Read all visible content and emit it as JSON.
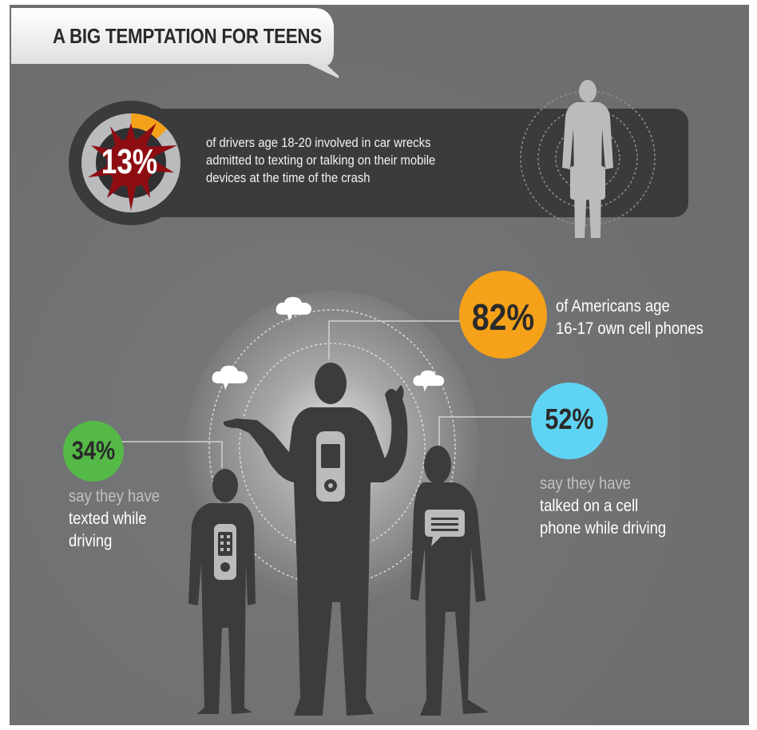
{
  "title": "A BIG TEMPTATION FOR TEENS",
  "stat_crash": {
    "value": "13%",
    "fraction": 0.13,
    "lines": [
      "of drivers age 18-20 involved in car wrecks",
      "admitted to texting or talking on their mobile",
      "devices at the time of the crash"
    ]
  },
  "stat_own": {
    "value": "82%",
    "lines": [
      "of Americans age",
      "16-17 own cell phones"
    ]
  },
  "stat_texted": {
    "value": "34%",
    "muted": "say they have",
    "lines": [
      "texted while",
      "driving"
    ]
  },
  "stat_talked": {
    "value": "52%",
    "muted": "say they have",
    "lines": [
      "talked on a cell",
      "phone while driving"
    ]
  },
  "colors": {
    "background": "#6f7173",
    "bar": "#3a3b3d",
    "orange": "#f5a11a",
    "green": "#55b947",
    "cyan": "#5fd3f3",
    "red_splat": "#8e0d12",
    "silhouette": "#3b3c3e",
    "silhouette_light": "#b9bbbd"
  },
  "icons": {
    "speech_bubbles": "cloud-speech-icon",
    "phone_on_chest": "cell-phone-icon",
    "message": "chat-message-icon"
  }
}
